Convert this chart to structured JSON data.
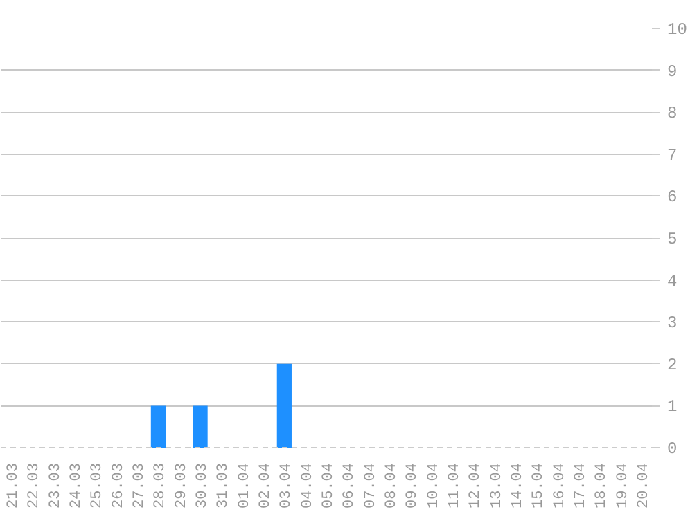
{
  "chart_data": {
    "type": "bar",
    "categories": [
      "21.03",
      "22.03",
      "23.03",
      "24.03",
      "25.03",
      "26.03",
      "27.03",
      "28.03",
      "29.03",
      "30.03",
      "31.03",
      "01.04",
      "02.04",
      "03.04",
      "04.04",
      "05.04",
      "06.04",
      "07.04",
      "08.04",
      "09.04",
      "10.04",
      "11.04",
      "12.04",
      "13.04",
      "14.04",
      "15.04",
      "16.04",
      "17.04",
      "18.04",
      "19.04",
      "20.04"
    ],
    "values": [
      0,
      0,
      0,
      0,
      0,
      0,
      0,
      1,
      0,
      1,
      0,
      0,
      0,
      2,
      0,
      0,
      0,
      0,
      0,
      0,
      0,
      0,
      0,
      0,
      0,
      0,
      0,
      0,
      0,
      0,
      0
    ],
    "color": "#1e90ff",
    "ylim": [
      0,
      10
    ],
    "yticks": [
      0,
      1,
      2,
      3,
      4,
      5,
      6,
      7,
      8,
      9,
      10
    ],
    "grid": "y"
  }
}
